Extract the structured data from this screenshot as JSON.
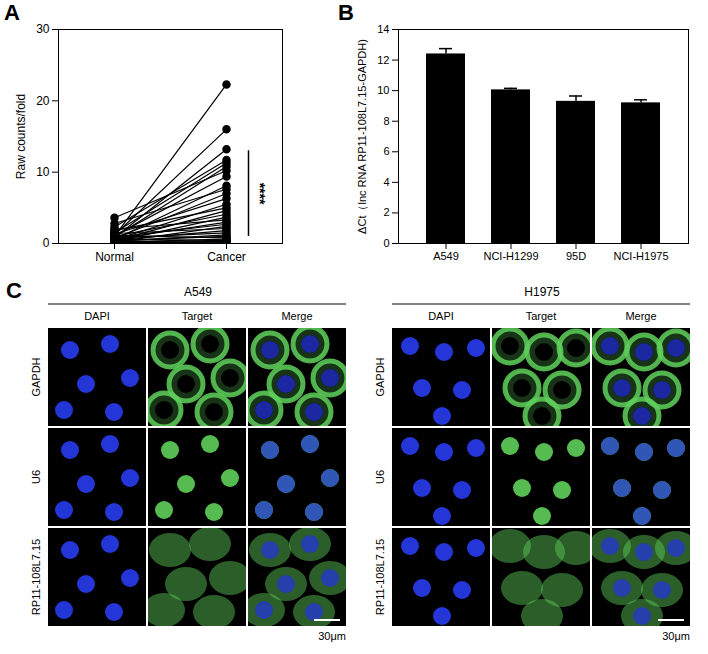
{
  "chart_data": [
    {
      "panel_label": "A",
      "type": "paired",
      "categories": [
        "Normal",
        "Cancer"
      ],
      "pairs": [
        [
          1.0,
          22.3
        ],
        [
          1.2,
          16.0
        ],
        [
          0.8,
          13.2
        ],
        [
          2.3,
          11.7
        ],
        [
          1.5,
          11.3
        ],
        [
          0.9,
          10.8
        ],
        [
          3.6,
          10.2
        ],
        [
          1.1,
          9.4
        ],
        [
          0.6,
          8.1
        ],
        [
          2.8,
          7.6
        ],
        [
          0.7,
          7.0
        ],
        [
          1.3,
          6.3
        ],
        [
          0.5,
          5.5
        ],
        [
          1.8,
          5.0
        ],
        [
          0.4,
          4.6
        ],
        [
          1.0,
          4.1
        ],
        [
          0.3,
          3.7
        ],
        [
          2.0,
          3.3
        ],
        [
          0.6,
          3.0
        ],
        [
          0.9,
          2.7
        ],
        [
          0.2,
          2.4
        ],
        [
          1.4,
          2.1
        ],
        [
          0.5,
          1.8
        ],
        [
          0.8,
          1.5
        ],
        [
          0.3,
          1.2
        ],
        [
          0.4,
          1.0
        ],
        [
          1.1,
          0.8
        ],
        [
          0.2,
          0.6
        ],
        [
          0.6,
          0.4
        ],
        [
          0.1,
          0.3
        ],
        [
          0.3,
          0.2
        ],
        [
          0.2,
          0.1
        ]
      ],
      "color": "#000000",
      "marker": "circle",
      "ylabel": "Raw counts/fold",
      "ylim": [
        0,
        30
      ],
      "yticks": [
        0,
        10,
        20,
        30
      ],
      "annotation": {
        "text": "****",
        "y_range": [
          1,
          13
        ]
      }
    },
    {
      "panel_label": "B",
      "type": "bar",
      "categories": [
        "A549",
        "NCI-H1299",
        "95D",
        "NCI-H1975"
      ],
      "values": [
        12.4,
        10.05,
        9.3,
        9.2
      ],
      "errors": [
        0.35,
        0.1,
        0.35,
        0.2
      ],
      "color": "#000000",
      "ylabel": "ΔCt（lnc RNA RP11-108L7.15-GAPDH)",
      "ylim": [
        0,
        14
      ],
      "yticks": [
        0,
        2,
        4,
        6,
        8,
        10,
        12,
        14
      ]
    }
  ],
  "image_panel": {
    "panel_label": "C",
    "columns": [
      "DAPI",
      "Target",
      "Merge"
    ],
    "rows": [
      "GAPDH",
      "U6",
      "RP11-108L7.15"
    ],
    "groups": [
      {
        "title": "A549",
        "scale_bar": "30μm"
      },
      {
        "title": "H1975",
        "scale_bar": "30μm"
      }
    ]
  }
}
